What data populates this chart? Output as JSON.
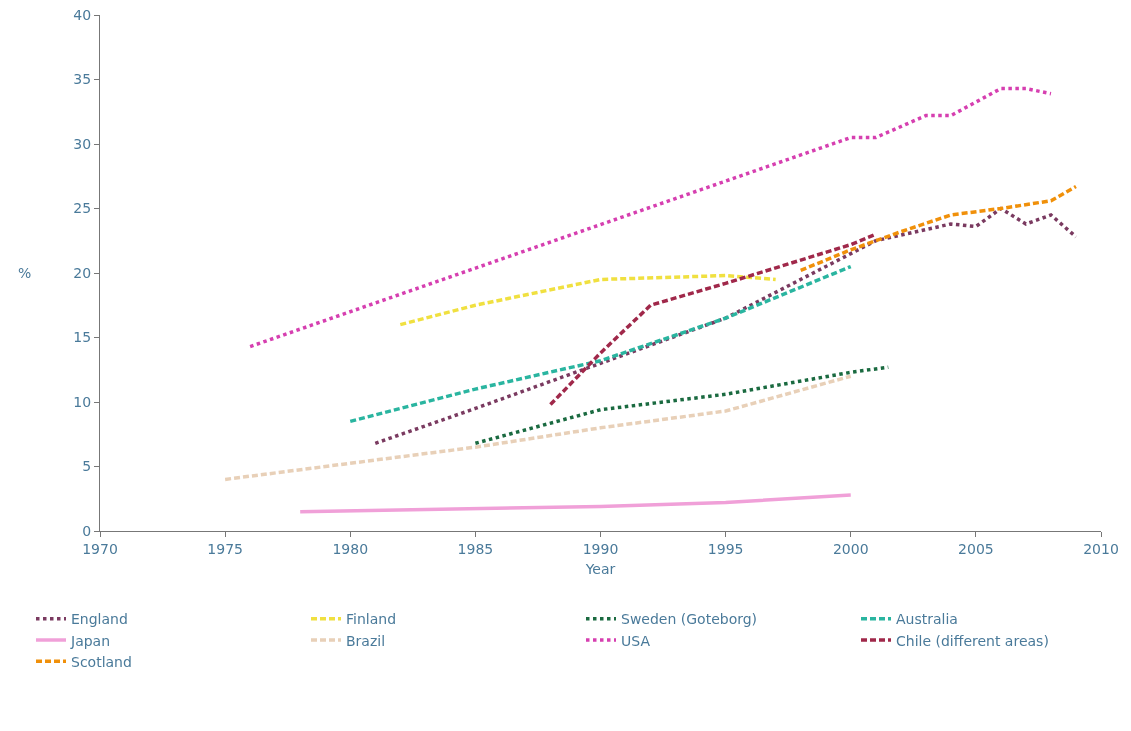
{
  "chart_data": {
    "type": "line",
    "xlabel": "Year",
    "ylabel": "%",
    "xlim": [
      1970,
      2010
    ],
    "xticks": [
      1970,
      1975,
      1980,
      1985,
      1990,
      1995,
      2000,
      2005,
      2010
    ],
    "ylim": [
      0,
      40
    ],
    "yticks": [
      0,
      5,
      10,
      15,
      20,
      25,
      30,
      35,
      40
    ],
    "grid": false,
    "legend": "bottom",
    "marker": "none",
    "series": [
      {
        "name": "England",
        "color": "#7a3a60",
        "line_style": "dotted",
        "x": [
          1981,
          1985,
          1990,
          1995,
          2000,
          2001,
          2004,
          2005,
          2006,
          2007,
          2008,
          2009
        ],
        "values": [
          6.8,
          9.5,
          13,
          16.5,
          21.5,
          22.5,
          23.8,
          23.6,
          25,
          23.8,
          24.5,
          22.8
        ]
      },
      {
        "name": "Finland",
        "color": "#f0e040",
        "line_style": "dashed",
        "x": [
          1982,
          1985,
          1990,
          1995,
          1997
        ],
        "values": [
          16,
          17.5,
          19.5,
          19.8,
          19.5
        ]
      },
      {
        "name": "Sweden (Goteborg)",
        "color": "#1a6a40",
        "line_style": "dotted",
        "x": [
          1985,
          1990,
          1995,
          2000,
          2001.5
        ],
        "values": [
          6.8,
          9.4,
          10.6,
          12.3,
          12.7
        ]
      },
      {
        "name": "Australia",
        "color": "#2ab5a0",
        "line_style": "dashed",
        "x": [
          1980,
          1985,
          1990,
          1995,
          2000
        ],
        "values": [
          8.5,
          11,
          13.2,
          16.5,
          20.5
        ]
      },
      {
        "name": "Japan",
        "color": "#f0a0d8",
        "line_style": "solid",
        "x": [
          1978,
          1990,
          1995,
          2000
        ],
        "values": [
          1.5,
          1.9,
          2.2,
          2.8
        ]
      },
      {
        "name": "Brazil",
        "color": "#e8d0b8",
        "line_style": "dashed",
        "x": [
          1975,
          1985,
          1990,
          1995,
          2000
        ],
        "values": [
          4,
          6.5,
          8,
          9.3,
          12
        ]
      },
      {
        "name": "USA",
        "color": "#d63fb0",
        "line_style": "dotted",
        "x": [
          1976,
          2000,
          2001,
          2003,
          2004,
          2006,
          2007,
          2008
        ],
        "values": [
          14.3,
          30.5,
          30.5,
          32.2,
          32.2,
          34.3,
          34.3,
          33.9
        ]
      },
      {
        "name": "Chile (different areas)",
        "color": "#a0284a",
        "line_style": "dashed",
        "x": [
          1988,
          1990,
          1992,
          1995,
          2000,
          2001
        ],
        "values": [
          9.8,
          13.8,
          17.5,
          19.2,
          22.2,
          23
        ]
      },
      {
        "name": "Scotland",
        "color": "#f0900a",
        "line_style": "dashed",
        "x": [
          1998,
          2000,
          2002,
          2004,
          2006,
          2008,
          2009
        ],
        "values": [
          20.2,
          21.8,
          23.2,
          24.5,
          25,
          25.6,
          26.7
        ]
      }
    ]
  }
}
